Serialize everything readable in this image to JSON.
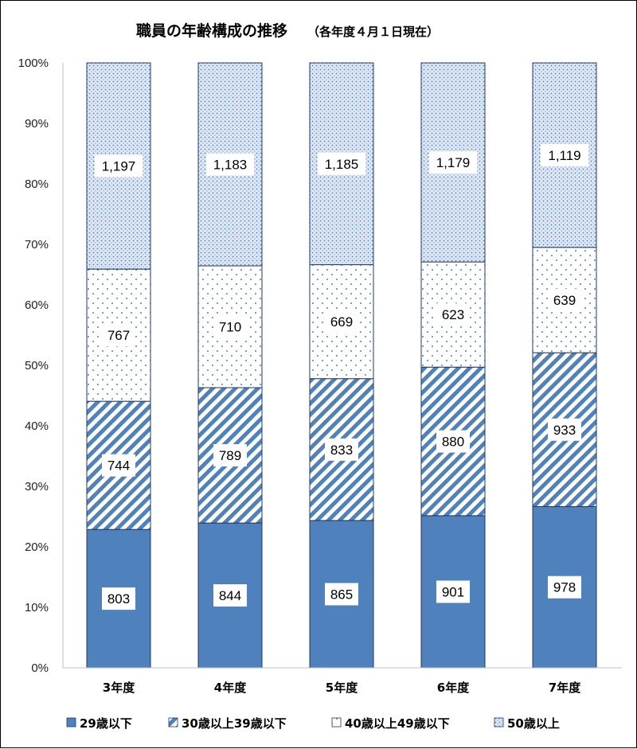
{
  "chart_data": {
    "type": "bar",
    "stacked": "percent",
    "title": "職員の年齢構成の推移",
    "subtitle": "（各年度４月１日現在）",
    "categories": [
      "3年度",
      "4年度",
      "5年度",
      "6年度",
      "7年度"
    ],
    "series": [
      {
        "name": "29歳以下",
        "values": [
          803,
          844,
          865,
          901,
          978
        ],
        "labels": [
          "803",
          "844",
          "865",
          "901",
          "978"
        ],
        "color": "#4F81BD",
        "pattern": "solid"
      },
      {
        "name": "30歳以上39歳以下",
        "values": [
          744,
          789,
          833,
          880,
          933
        ],
        "labels": [
          "744",
          "789",
          "833",
          "880",
          "933"
        ],
        "color": "#4F81BD",
        "pattern": "diagonal"
      },
      {
        "name": "40歳以上49歳以下",
        "values": [
          767,
          710,
          669,
          623,
          639
        ],
        "labels": [
          "767",
          "710",
          "669",
          "623",
          "639"
        ],
        "color": "#4F81BD",
        "pattern": "sparse-dots"
      },
      {
        "name": "50歳以上",
        "values": [
          1197,
          1183,
          1185,
          1179,
          1119
        ],
        "labels": [
          "1,197",
          "1,183",
          "1,185",
          "1,179",
          "1,119"
        ],
        "color": "#4F81BD",
        "pattern": "dense-dots"
      }
    ],
    "y_ticks": [
      "0%",
      "10%",
      "20%",
      "30%",
      "40%",
      "50%",
      "60%",
      "70%",
      "80%",
      "90%",
      "100%"
    ],
    "ylim": [
      0,
      100
    ],
    "grid": false,
    "legend_position": "bottom"
  }
}
